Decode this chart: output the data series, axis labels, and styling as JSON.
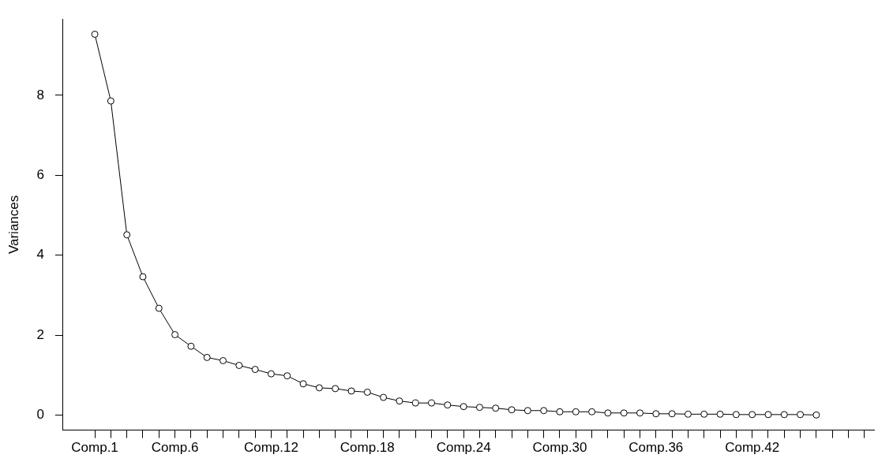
{
  "chart_data": {
    "type": "line",
    "ylabel": "Variances",
    "categories": [
      "Comp.1",
      null,
      null,
      null,
      null,
      "Comp.6",
      null,
      null,
      null,
      null,
      null,
      "Comp.12",
      null,
      null,
      null,
      null,
      null,
      "Comp.18",
      null,
      null,
      null,
      null,
      null,
      "Comp.24",
      null,
      null,
      null,
      null,
      null,
      "Comp.30",
      null,
      null,
      null,
      null,
      null,
      "Comp.36",
      null,
      null,
      null,
      null,
      null,
      "Comp.42",
      null,
      null,
      null,
      null,
      null,
      null,
      null
    ],
    "series": [
      {
        "color": "#000000",
        "values": [
          9.53,
          7.86,
          4.51,
          3.46,
          2.67,
          2.01,
          1.72,
          1.44,
          1.36,
          1.24,
          1.14,
          1.03,
          0.98,
          0.78,
          0.68,
          0.66,
          0.6,
          0.57,
          0.44,
          0.35,
          0.3,
          0.3,
          0.25,
          0.21,
          0.19,
          0.17,
          0.13,
          0.11,
          0.11,
          0.08,
          0.08,
          0.08,
          0.05,
          0.05,
          0.05,
          0.03,
          0.03,
          0.02,
          0.02,
          0.02,
          0.01,
          0.01,
          0.01,
          0.01,
          0.01,
          0,
          null,
          null,
          null
        ]
      }
    ],
    "ylim": [
      -0.38,
      9.91
    ],
    "yticks": [
      0,
      2,
      4,
      6,
      8
    ],
    "grid": false,
    "legend": false,
    "marker": "circle",
    "line_style": "solid"
  }
}
